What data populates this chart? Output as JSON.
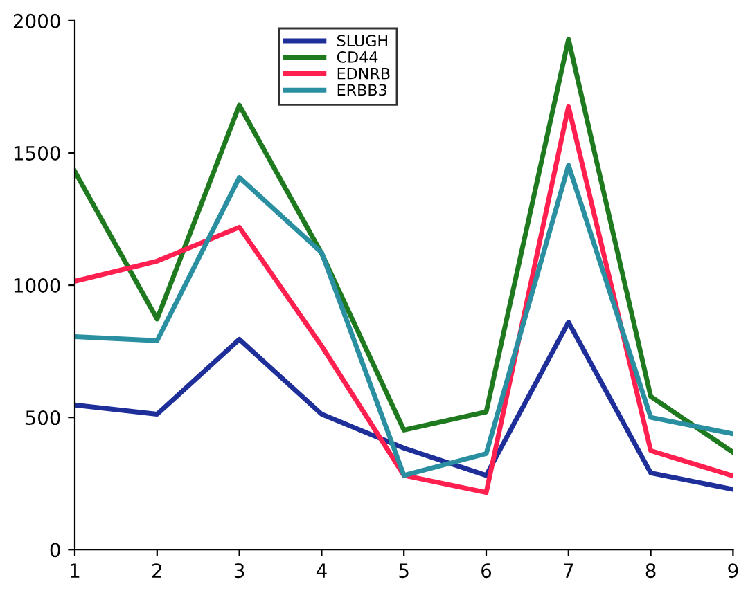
{
  "chart_data": {
    "type": "line",
    "x": [
      1,
      2,
      3,
      4,
      5,
      6,
      7,
      8,
      9
    ],
    "series": [
      {
        "name": "SLUGH",
        "color": "#1f2f9a",
        "values": [
          547,
          512,
          795,
          512,
          384,
          281,
          860,
          290,
          228
        ]
      },
      {
        "name": "CD44",
        "color": "#1f7a1f",
        "values": [
          1430,
          872,
          1680,
          1120,
          452,
          521,
          1930,
          579,
          368
        ]
      },
      {
        "name": "EDNRB",
        "color": "#ff2050",
        "values": [
          1015,
          1091,
          1219,
          770,
          281,
          216,
          1675,
          374,
          279
        ]
      },
      {
        "name": "ERBB3",
        "color": "#2a8fa0",
        "values": [
          805,
          790,
          1407,
          1123,
          281,
          363,
          1453,
          500,
          438
        ]
      }
    ],
    "xlim": [
      1,
      9
    ],
    "xticks": [
      1,
      2,
      3,
      4,
      5,
      6,
      7,
      8,
      9
    ],
    "ylim": [
      0,
      2000
    ],
    "yticks": [
      0,
      500,
      1000,
      1500,
      2000
    ],
    "grid": false,
    "legend": "top",
    "marker": "none",
    "line_style": "solid"
  }
}
